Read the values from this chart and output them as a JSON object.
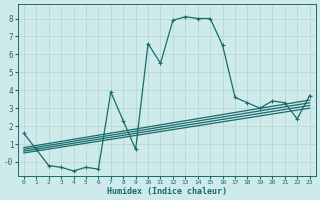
{
  "xlabel": "Humidex (Indice chaleur)",
  "background_color": "#ceeaea",
  "line_color": "#1a6b6b",
  "grid_color": "#b8d8d8",
  "xlim": [
    -0.5,
    23.5
  ],
  "ylim": [
    -0.8,
    8.8
  ],
  "x_main": [
    0,
    1,
    2,
    3,
    4,
    5,
    6,
    7,
    8,
    9,
    10,
    11,
    12,
    13,
    14,
    15,
    16,
    17,
    18,
    19,
    20,
    21,
    22,
    23
  ],
  "y_main": [
    1.6,
    0.7,
    -0.2,
    -0.3,
    -0.5,
    -0.3,
    -0.4,
    3.9,
    2.3,
    0.7,
    6.6,
    5.5,
    7.9,
    8.1,
    8.0,
    8.0,
    6.5,
    3.6,
    3.3,
    3.0,
    3.4,
    3.3,
    2.4,
    3.7
  ],
  "linear_lines": [
    {
      "x": [
        0,
        23
      ],
      "y": [
        0.5,
        3.0
      ]
    },
    {
      "x": [
        0,
        23
      ],
      "y": [
        0.6,
        3.15
      ]
    },
    {
      "x": [
        0,
        23
      ],
      "y": [
        0.7,
        3.3
      ]
    },
    {
      "x": [
        0,
        23
      ],
      "y": [
        0.8,
        3.45
      ]
    }
  ],
  "xticks": [
    0,
    1,
    2,
    3,
    4,
    5,
    6,
    7,
    8,
    9,
    10,
    11,
    12,
    13,
    14,
    15,
    16,
    17,
    18,
    19,
    20,
    21,
    22,
    23
  ],
  "yticks": [
    0,
    1,
    2,
    3,
    4,
    5,
    6,
    7,
    8
  ],
  "ytick_labels": [
    "-0",
    "1",
    "2",
    "3",
    "4",
    "5",
    "6",
    "7",
    "8"
  ],
  "marker_size": 3.5,
  "line_width": 0.9,
  "tick_fontsize_x": 4.5,
  "tick_fontsize_y": 5.5,
  "xlabel_fontsize": 6.0
}
